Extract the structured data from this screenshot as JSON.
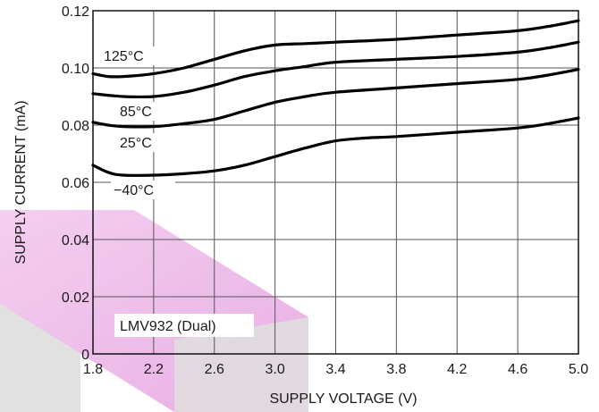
{
  "chart_data": {
    "type": "line",
    "title": "",
    "xlabel": "SUPPLY VOLTAGE (V)",
    "ylabel": "SUPPLY CURRENT (mA)",
    "xlim": [
      1.8,
      5.0
    ],
    "ylim": [
      0,
      0.12
    ],
    "x_ticks": [
      "1.8",
      "2.2",
      "2.6",
      "3.0",
      "3.4",
      "3.8",
      "4.2",
      "4.6",
      "5.0"
    ],
    "y_ticks": [
      "0",
      "0.02",
      "0.04",
      "0.06",
      "0.08",
      "0.10",
      "0.12"
    ],
    "grid": true,
    "annotation": "LMV932 (Dual)",
    "series": [
      {
        "name": "125°C",
        "x": [
          1.8,
          1.9,
          2.0,
          2.2,
          2.4,
          2.6,
          2.8,
          3.0,
          3.2,
          3.4,
          3.8,
          4.2,
          4.6,
          4.8,
          5.0
        ],
        "y": [
          0.098,
          0.097,
          0.097,
          0.098,
          0.1,
          0.103,
          0.106,
          0.108,
          0.1085,
          0.109,
          0.11,
          0.1115,
          0.113,
          0.1145,
          0.1165
        ]
      },
      {
        "name": "85°C",
        "x": [
          1.8,
          2.0,
          2.2,
          2.4,
          2.6,
          2.8,
          3.0,
          3.2,
          3.4,
          3.8,
          4.2,
          4.6,
          4.8,
          5.0
        ],
        "y": [
          0.091,
          0.09,
          0.09,
          0.0915,
          0.094,
          0.097,
          0.099,
          0.1005,
          0.102,
          0.103,
          0.104,
          0.1055,
          0.107,
          0.109
        ]
      },
      {
        "name": "25°C",
        "x": [
          1.8,
          1.9,
          2.0,
          2.2,
          2.4,
          2.6,
          2.8,
          3.0,
          3.2,
          3.4,
          3.8,
          4.2,
          4.6,
          4.8,
          5.0
        ],
        "y": [
          0.081,
          0.08,
          0.0795,
          0.0795,
          0.0805,
          0.082,
          0.085,
          0.088,
          0.09,
          0.0915,
          0.093,
          0.0945,
          0.096,
          0.0975,
          0.0995
        ]
      },
      {
        "name": "−40°C",
        "x": [
          1.8,
          1.9,
          2.0,
          2.2,
          2.4,
          2.6,
          2.8,
          3.0,
          3.2,
          3.4,
          3.6,
          3.8,
          4.2,
          4.6,
          4.8,
          5.0
        ],
        "y": [
          0.066,
          0.0635,
          0.0625,
          0.0625,
          0.063,
          0.064,
          0.066,
          0.069,
          0.072,
          0.0745,
          0.0755,
          0.076,
          0.0775,
          0.079,
          0.0805,
          0.0825
        ]
      }
    ]
  }
}
